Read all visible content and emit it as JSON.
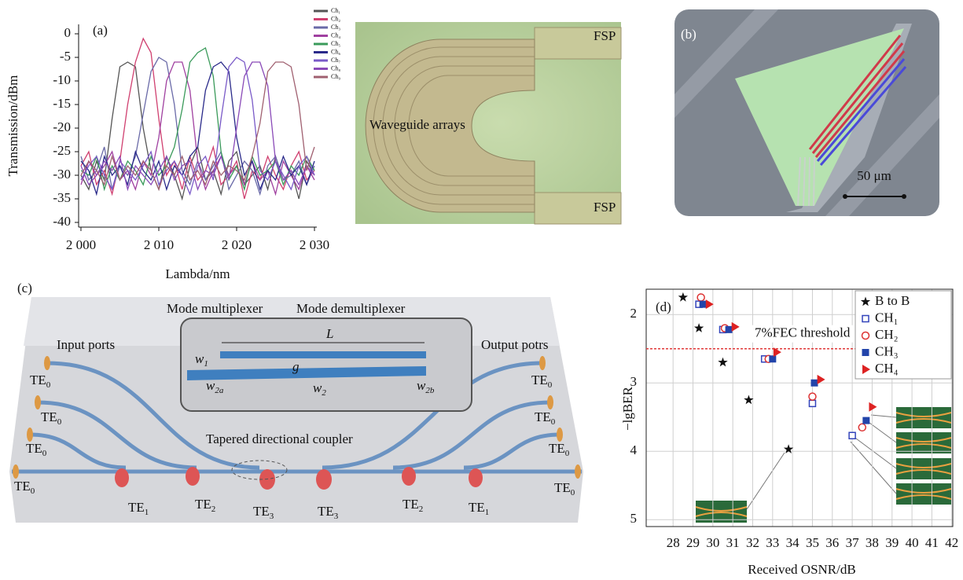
{
  "chart_data": [
    {
      "type": "line",
      "label": "(a)",
      "x_label": "Lambda/nm",
      "y_label": "Transmission/dBm",
      "x": [
        2000,
        2001,
        2002,
        2003,
        2004,
        2005,
        2006,
        2007,
        2008,
        2009,
        2010,
        2011,
        2012,
        2013,
        2014,
        2015,
        2016,
        2017,
        2018,
        2019,
        2020,
        2021,
        2022,
        2023,
        2024,
        2025,
        2026,
        2027,
        2028,
        2029,
        2030
      ],
      "xlim": [
        1999.7,
        2030.3
      ],
      "xticks": [
        {
          "value": 2000,
          "label": "2 000"
        },
        {
          "value": 2010,
          "label": "2 010"
        },
        {
          "value": 2020,
          "label": "2 020"
        },
        {
          "value": 2030,
          "label": "2 030"
        }
      ],
      "ylim": [
        -41,
        2
      ],
      "yticks": [
        0,
        -5,
        -10,
        -15,
        -20,
        -25,
        -30,
        -35,
        -40
      ],
      "series": [
        {
          "name": "Ch₁",
          "color": "#555555",
          "values": [
            -30,
            -33,
            -27,
            -31,
            -18,
            -7,
            -6,
            -7,
            -20,
            -29,
            -33,
            -26,
            -30,
            -35,
            -28,
            -24,
            -31,
            -29,
            -34,
            -27,
            -25,
            -32,
            -30,
            -28,
            -33,
            -26,
            -31,
            -29,
            -35,
            -27,
            -30
          ]
        },
        {
          "name": "Ch₂",
          "color": "#d04070",
          "values": [
            -28,
            -25,
            -32,
            -29,
            -34,
            -27,
            -15,
            -6,
            -1,
            -4,
            -18,
            -30,
            -27,
            -33,
            -26,
            -31,
            -29,
            -24,
            -32,
            -30,
            -27,
            -35,
            -29,
            -31,
            -26,
            -30,
            -33,
            -28,
            -25,
            -31,
            -29
          ]
        },
        {
          "name": "Ch₃",
          "color": "#6a6aa8",
          "values": [
            -26,
            -31,
            -29,
            -24,
            -33,
            -28,
            -30,
            -26,
            -17,
            -8,
            -5,
            -6,
            -15,
            -29,
            -32,
            -27,
            -31,
            -28,
            -25,
            -33,
            -30,
            -27,
            -29,
            -34,
            -28,
            -26,
            -31,
            -30,
            -27,
            -32,
            -28
          ]
        },
        {
          "name": "Ch₄",
          "color": "#a040a0",
          "values": [
            -32,
            -27,
            -30,
            -28,
            -25,
            -31,
            -29,
            -33,
            -27,
            -30,
            -22,
            -10,
            -6,
            -6,
            -12,
            -27,
            -33,
            -29,
            -26,
            -30,
            -28,
            -32,
            -27,
            -31,
            -29,
            -34,
            -27,
            -30,
            -33,
            -28,
            -31
          ]
        },
        {
          "name": "Ch₅",
          "color": "#3a9a5a",
          "values": [
            -29,
            -30,
            -26,
            -33,
            -28,
            -31,
            -27,
            -29,
            -32,
            -26,
            -30,
            -28,
            -24,
            -16,
            -6,
            -4,
            -3,
            -9,
            -25,
            -31,
            -28,
            -33,
            -26,
            -30,
            -29,
            -27,
            -32,
            -28,
            -30,
            -26,
            -29
          ]
        },
        {
          "name": "Ch₆",
          "color": "#2a2a8a",
          "values": [
            -27,
            -29,
            -34,
            -26,
            -30,
            -28,
            -32,
            -25,
            -29,
            -31,
            -27,
            -33,
            -28,
            -30,
            -26,
            -24,
            -12,
            -7,
            -6,
            -8,
            -22,
            -30,
            -27,
            -33,
            -29,
            -31,
            -26,
            -30,
            -28,
            -32,
            -27
          ]
        },
        {
          "name": "Ch₇",
          "color": "#7a5ac8",
          "values": [
            -31,
            -28,
            -26,
            -30,
            -33,
            -27,
            -29,
            -31,
            -28,
            -25,
            -32,
            -29,
            -27,
            -30,
            -34,
            -28,
            -26,
            -31,
            -18,
            -7,
            -5,
            -6,
            -14,
            -29,
            -31,
            -27,
            -30,
            -33,
            -28,
            -26,
            -30
          ]
        },
        {
          "name": "Ch₈",
          "color": "#8a4ab8",
          "values": [
            -28,
            -32,
            -30,
            -27,
            -29,
            -26,
            -33,
            -28,
            -30,
            -32,
            -29,
            -26,
            -31,
            -28,
            -27,
            -33,
            -29,
            -30,
            -26,
            -31,
            -20,
            -9,
            -6,
            -6,
            -11,
            -27,
            -31,
            -29,
            -32,
            -28,
            -30
          ]
        },
        {
          "name": "Ch₉",
          "color": "#a06070",
          "values": [
            -30,
            -27,
            -29,
            -32,
            -26,
            -31,
            -28,
            -30,
            -27,
            -29,
            -33,
            -28,
            -30,
            -26,
            -31,
            -29,
            -32,
            -27,
            -30,
            -28,
            -29,
            -31,
            -26,
            -19,
            -8,
            -6,
            -6,
            -7,
            -15,
            -29,
            -24
          ]
        }
      ]
    },
    {
      "type": "scatter",
      "label": "(d)",
      "x_label": "Received OSNR/dB",
      "y_label": "−lgBER",
      "xlim": [
        26.65,
        42.05
      ],
      "xticks": [
        28,
        29,
        30,
        31,
        32,
        33,
        34,
        35,
        36,
        37,
        38,
        39,
        40,
        41,
        42
      ],
      "ylim": [
        1.63,
        5.1
      ],
      "y_inverted": true,
      "yticks": [
        2,
        3,
        4,
        5
      ],
      "grid": true,
      "threshold": 2.5,
      "threshold_label": "7%FEC threshold",
      "threshold_color": "#e03a3a",
      "series": [
        {
          "name": "B to B",
          "marker": "star",
          "color": "#111111",
          "x": [
            28.5,
            29.3,
            30.5,
            31.8,
            33.8
          ],
          "values": [
            1.75,
            2.2,
            2.7,
            3.25,
            3.97
          ]
        },
        {
          "name": "CH₁",
          "marker": "square-open",
          "color": "#3344bb",
          "x": [
            29.3,
            30.5,
            32.6,
            35,
            37
          ],
          "values": [
            1.85,
            2.22,
            2.65,
            3.3,
            3.77
          ]
        },
        {
          "name": "CH₂",
          "marker": "circle-open",
          "color": "#dd3333",
          "x": [
            29.4,
            30.6,
            32.8,
            35,
            37.5
          ],
          "values": [
            1.75,
            2.2,
            2.65,
            3.2,
            3.65
          ]
        },
        {
          "name": "CH₃",
          "marker": "square",
          "color": "#2244aa",
          "x": [
            29.5,
            30.8,
            33,
            35.1,
            37.7
          ],
          "values": [
            1.85,
            2.22,
            2.65,
            3.0,
            3.55
          ]
        },
        {
          "name": "CH₄",
          "marker": "triangle",
          "color": "#dd2222",
          "x": [
            29.8,
            31.1,
            33.2,
            35.4,
            38
          ],
          "values": [
            1.85,
            2.18,
            2.55,
            2.95,
            3.35
          ]
        }
      ]
    }
  ],
  "micrograph": {
    "label": "Waveguide arrays",
    "ports": [
      "FSP",
      "FSP"
    ]
  },
  "sem": {
    "label": "(b)",
    "scale": "50 μm"
  },
  "diagram": {
    "label": "(c)",
    "mux": "Mode multiplexer",
    "demux": "Mode demultiplexer",
    "input": "Input ports",
    "output": "Output potrs",
    "coupler": "Tapered directional coupler",
    "length": "L",
    "gap": "g",
    "widths": [
      {
        "base": "w",
        "sub": "1"
      },
      {
        "base": "w",
        "sub": "2a"
      },
      {
        "base": "w",
        "sub": "2"
      },
      {
        "base": "w",
        "sub": "2b"
      }
    ],
    "modes": [
      {
        "base": "TE",
        "sub": "0"
      },
      {
        "base": "TE",
        "sub": "0"
      },
      {
        "base": "TE",
        "sub": "0"
      },
      {
        "base": "TE",
        "sub": "0"
      },
      {
        "base": "TE",
        "sub": "0"
      },
      {
        "base": "TE",
        "sub": "0"
      },
      {
        "base": "TE",
        "sub": "0"
      },
      {
        "base": "TE",
        "sub": "0"
      },
      {
        "base": "TE",
        "sub": "1"
      },
      {
        "base": "TE",
        "sub": "2"
      },
      {
        "base": "TE",
        "sub": "3"
      },
      {
        "base": "TE",
        "sub": "3"
      },
      {
        "base": "TE",
        "sub": "2"
      },
      {
        "base": "TE",
        "sub": "1"
      }
    ]
  }
}
